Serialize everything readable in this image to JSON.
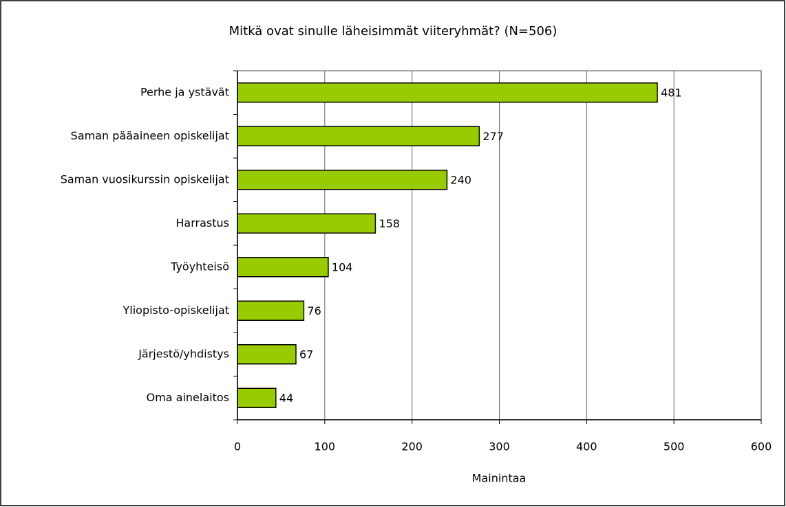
{
  "chart_data": {
    "type": "bar",
    "orientation": "horizontal",
    "title": "Mitkä ovat sinulle läheisimmät viiteryhmät? (N=506)",
    "x_label": "Mainintaa",
    "categories": [
      "Perhe ja ystävät",
      "Saman pääaineen opiskelijat",
      "Saman vuosikurssin opiskelijat",
      "Harrastus",
      "Työyhteisö",
      "Yliopisto-opiskelijat",
      "Järjestö/yhdistys",
      "Oma ainelaitos"
    ],
    "values": [
      481,
      277,
      240,
      158,
      104,
      76,
      67,
      44
    ],
    "color": "#99cc00",
    "xlim": [
      0,
      600
    ],
    "xticks": [
      0,
      100,
      200,
      300,
      400,
      500,
      600
    ],
    "grid": true
  }
}
